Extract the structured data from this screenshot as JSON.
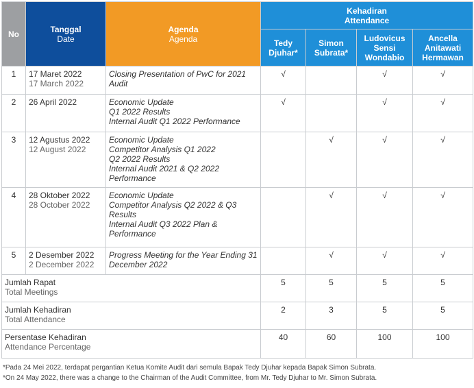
{
  "header": {
    "no": "No",
    "date_id": "Tanggal",
    "date_en": "Date",
    "agenda_id": "Agenda",
    "agenda_en": "Agenda",
    "attendance_id": "Kehadiran",
    "attendance_en": "Attendance",
    "members": [
      {
        "line1": "Tedy",
        "line2": "Djuhar*",
        "line3": ""
      },
      {
        "line1": "Simon",
        "line2": "Subrata*",
        "line3": ""
      },
      {
        "line1": "Ludovicus",
        "line2": "Sensi",
        "line3": "Wondabio"
      },
      {
        "line1": "Ancella",
        "line2": "Anitawati",
        "line3": "Hermawan"
      }
    ]
  },
  "check": "√",
  "rows": [
    {
      "no": "1",
      "date_id": "17 Maret 2022",
      "date_en": "17 March 2022",
      "agenda": [
        "Closing Presentation of PwC for 2021",
        "Audit"
      ],
      "marks": [
        "√",
        "",
        "√",
        "√"
      ]
    },
    {
      "no": "2",
      "date_id": "26 April 2022",
      "date_en": "",
      "agenda": [
        "Economic Update",
        "Q1 2022 Results",
        "Internal Audit Q1 2022 Performance"
      ],
      "marks": [
        "√",
        "",
        "√",
        "√"
      ]
    },
    {
      "no": "3",
      "date_id": "12 Agustus 2022",
      "date_en": "12 August 2022",
      "agenda": [
        "Economic Update",
        "Competitor Analysis Q1 2022",
        "Q2 2022 Results",
        "Internal Audit 2021 & Q2 2022",
        "Performance"
      ],
      "marks": [
        "",
        "√",
        "√",
        "√"
      ]
    },
    {
      "no": "4",
      "date_id": "28 Oktober 2022",
      "date_en": "28 October 2022",
      "agenda": [
        "Economic Update",
        "Competitor Analysis Q2 2022 & Q3",
        "Results",
        "Internal Audit Q3 2022 Plan &",
        "Performance"
      ],
      "marks": [
        "",
        "√",
        "√",
        "√"
      ]
    },
    {
      "no": "5",
      "date_id": "2 Desember 2022",
      "date_en": "2 December 2022",
      "agenda": [
        "Progress Meeting for the Year Ending 31",
        "December 2022"
      ],
      "marks": [
        "",
        "√",
        "√",
        "√"
      ]
    }
  ],
  "summary": [
    {
      "label_id": "Jumlah Rapat",
      "label_en": "Total Meetings",
      "values": [
        "5",
        "5",
        "5",
        "5"
      ]
    },
    {
      "label_id": "Jumlah Kehadiran",
      "label_en": "Total Attendance",
      "values": [
        "2",
        "3",
        "5",
        "5"
      ]
    },
    {
      "label_id": "Persentase Kehadiran",
      "label_en": "Attendance Percentage",
      "values": [
        "40",
        "60",
        "100",
        "100"
      ]
    }
  ],
  "footnotes": {
    "id": "*Pada 24 Mei 2022, terdapat pergantian Ketua Komite Audit dari semula Bapak Tedy Djuhar kepada Bapak Simon Subrata.",
    "en": "*On 24 May 2022, there was a change to the Chairman of the Audit Committee, from Mr. Tedy Djuhar to Mr. Simon Subrata."
  }
}
